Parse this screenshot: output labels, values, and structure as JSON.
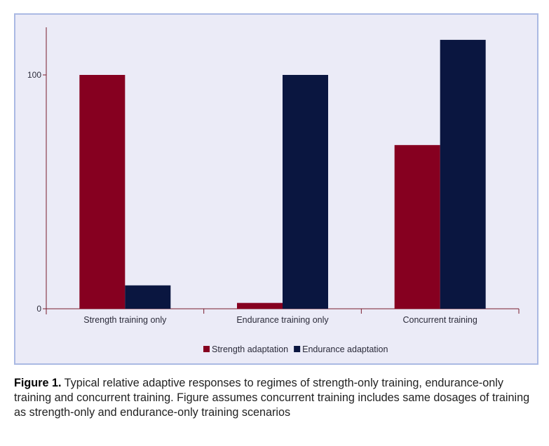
{
  "colors": {
    "strength": "#860020",
    "endurance": "#0a1640",
    "axis": "#7a1c2e"
  },
  "chart_data": {
    "type": "bar",
    "categories": [
      "Strength training only",
      "Endurance training only",
      "Concurrent training"
    ],
    "series": [
      {
        "name": "Strength adaptation",
        "values": [
          100,
          2.5,
          70
        ]
      },
      {
        "name": "Endurance adaptation",
        "values": [
          10,
          100,
          115
        ]
      }
    ],
    "yticks": [
      0,
      100
    ],
    "ylim": [
      0,
      120
    ],
    "grid": false,
    "legend_position": "bottom-center",
    "title": "",
    "xlabel": "",
    "ylabel": ""
  },
  "caption": {
    "label": "Figure 1.",
    "text": " Typical relative adaptive responses to regimes of strength-only training, endurance-only training and concurrent training. Figure assumes concurrent training includes same dosages of training as strength-only and endurance-only training scenarios"
  }
}
